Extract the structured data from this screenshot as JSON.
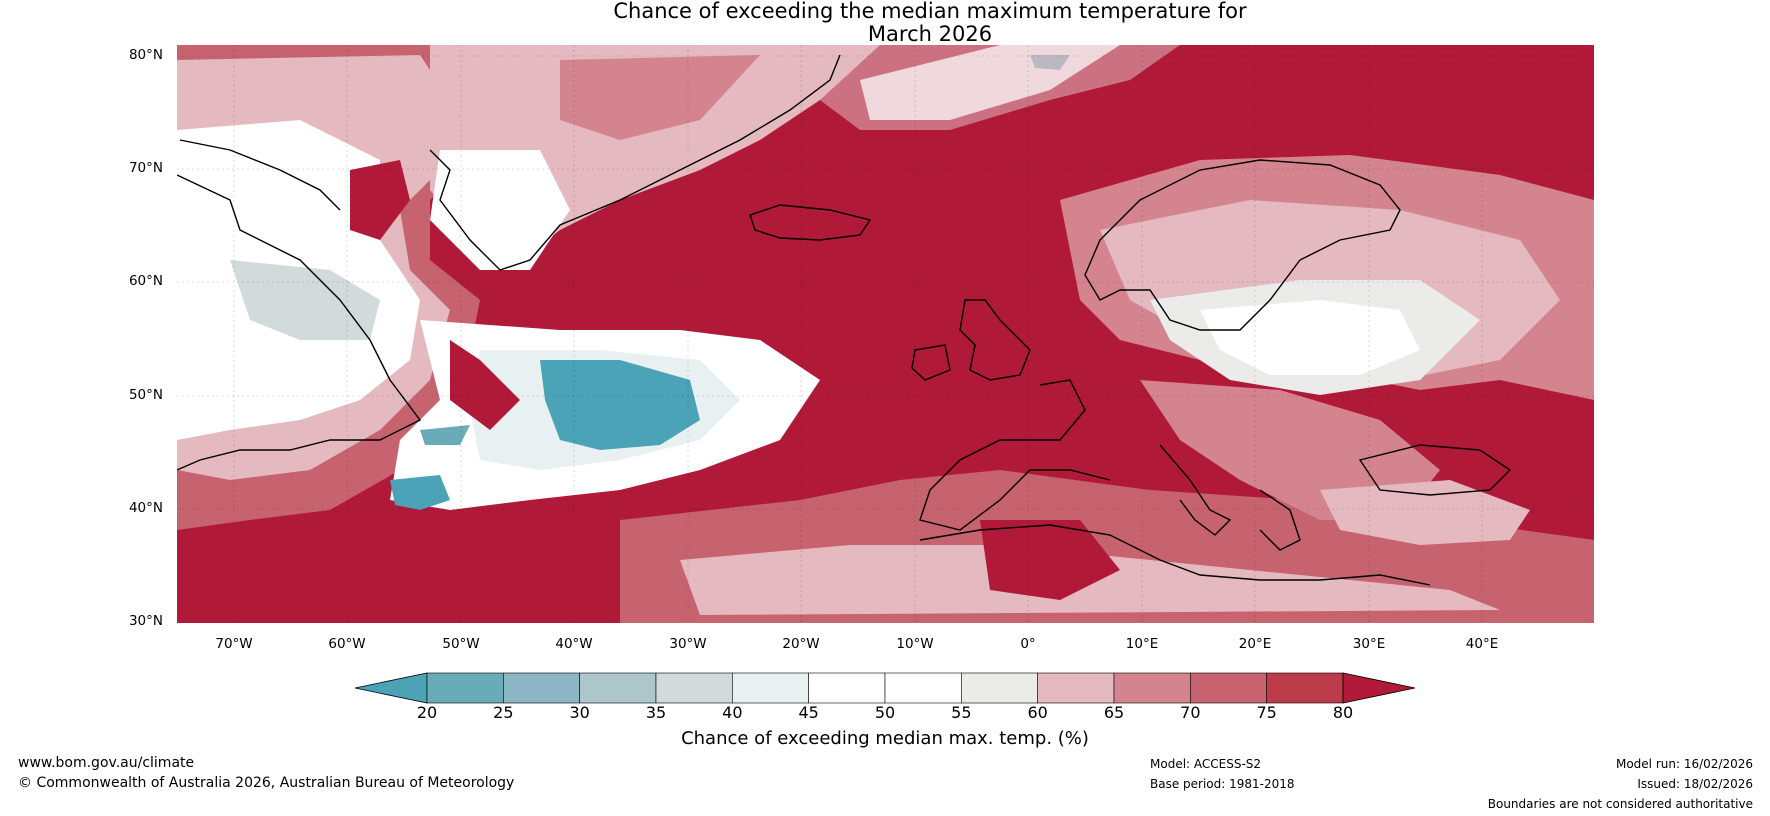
{
  "title": {
    "line1": "Chance of exceeding the median maximum temperature for",
    "line2": "March 2026"
  },
  "map": {
    "lat_labels": [
      "80°N",
      "70°N",
      "60°N",
      "50°N",
      "40°N",
      "30°N"
    ],
    "lon_labels": [
      "70°W",
      "60°W",
      "50°W",
      "40°W",
      "30°W",
      "20°W",
      "10°W",
      "0°",
      "10°E",
      "20°E",
      "30°E",
      "40°E"
    ],
    "lat_range": [
      30,
      81
    ],
    "lon_range": [
      -75,
      50
    ],
    "dominant_category": "80",
    "low_anomaly_region": "North Atlantic near 40°W–30°W, 45°N–52°N"
  },
  "colorbar": {
    "ticks": [
      "20",
      "25",
      "30",
      "35",
      "40",
      "45",
      "50",
      "55",
      "60",
      "65",
      "70",
      "75",
      "80"
    ],
    "colors": [
      "#4aa3b6",
      "#6aabb9",
      "#8db7c4",
      "#adc6cc",
      "#d2dadb",
      "#e8f0f2",
      "#ffffff",
      "#ffffff",
      "#ebebea",
      "#e4b9c0",
      "#d4848f",
      "#c7636f",
      "#bc3c4b",
      "#b01a38"
    ],
    "extend_low_color": "#4aa3b6",
    "extend_high_color": "#b01a38",
    "label": "Chance of exceeding median max. temp. (%)"
  },
  "footer": {
    "website": "www.bom.gov.au/climate",
    "copyright": "© Commonwealth of Australia 2026, Australian Bureau of Meteorology",
    "model": "Model: ACCESS-S2",
    "base_period": "Base period: 1981-2018",
    "model_run": "Model run: 16/02/2026",
    "issued": "Issued: 18/02/2026",
    "disclaimer": "Boundaries are not considered authoritative"
  }
}
